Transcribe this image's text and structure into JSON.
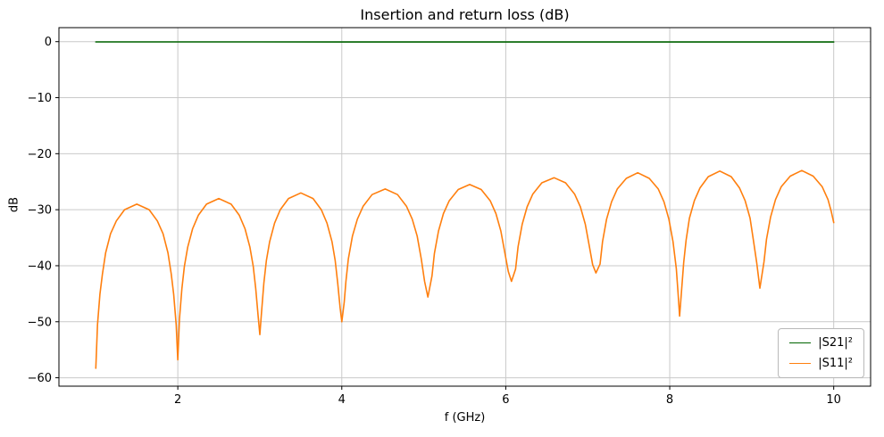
{
  "chart_data": {
    "type": "line",
    "title": "Insertion and return loss (dB)",
    "xlabel": "f (GHz)",
    "ylabel": "dB",
    "xlim": [
      0.55,
      10.45
    ],
    "ylim": [
      -61.5,
      2.5
    ],
    "xticks": [
      2,
      4,
      6,
      8,
      10
    ],
    "xtick_labels": [
      "2",
      "4",
      "6",
      "8",
      "10"
    ],
    "yticks": [
      0,
      -10,
      -20,
      -30,
      -40,
      -50,
      -60
    ],
    "ytick_labels": [
      "0",
      "−10",
      "−20",
      "−30",
      "−40",
      "−50",
      "−60"
    ],
    "grid": true,
    "grid_color": "#c9c9c9",
    "frame_color": "#000000",
    "legend_position": "lower right",
    "series": [
      {
        "name": "|S21|²",
        "color": "#006400",
        "points": [
          [
            1.0,
            -0.05
          ],
          [
            2.0,
            -0.05
          ],
          [
            3.0,
            -0.05
          ],
          [
            4.0,
            -0.06
          ],
          [
            5.0,
            -0.06
          ],
          [
            6.0,
            -0.06
          ],
          [
            7.0,
            -0.06
          ],
          [
            8.0,
            -0.06
          ],
          [
            9.0,
            -0.06
          ],
          [
            10.0,
            -0.06
          ]
        ]
      },
      {
        "name": "|S11|²",
        "color": "#ff7f0e",
        "points": [
          [
            1.0,
            -58.3
          ],
          [
            1.02,
            -50.5
          ],
          [
            1.05,
            -45.1
          ],
          [
            1.08,
            -41.5
          ],
          [
            1.12,
            -37.7
          ],
          [
            1.18,
            -34.3
          ],
          [
            1.25,
            -32.0
          ],
          [
            1.35,
            -30.0
          ],
          [
            1.5,
            -29.0
          ],
          [
            1.65,
            -30.0
          ],
          [
            1.75,
            -32.0
          ],
          [
            1.82,
            -34.3
          ],
          [
            1.88,
            -37.7
          ],
          [
            1.92,
            -41.5
          ],
          [
            1.95,
            -45.1
          ],
          [
            1.98,
            -50.5
          ],
          [
            2.0,
            -56.8
          ],
          [
            2.02,
            -49.5
          ],
          [
            2.05,
            -44.1
          ],
          [
            2.08,
            -40.1
          ],
          [
            2.12,
            -36.7
          ],
          [
            2.18,
            -33.4
          ],
          [
            2.25,
            -31.0
          ],
          [
            2.35,
            -29.0
          ],
          [
            2.5,
            -28.0
          ],
          [
            2.65,
            -29.0
          ],
          [
            2.75,
            -31.0
          ],
          [
            2.82,
            -33.4
          ],
          [
            2.88,
            -36.7
          ],
          [
            2.92,
            -40.1
          ],
          [
            2.95,
            -44.1
          ],
          [
            2.98,
            -49.0
          ],
          [
            3.0,
            -52.3
          ],
          [
            3.02,
            -48.5
          ],
          [
            3.05,
            -43.1
          ],
          [
            3.08,
            -39.1
          ],
          [
            3.12,
            -35.7
          ],
          [
            3.18,
            -32.4
          ],
          [
            3.25,
            -30.0
          ],
          [
            3.35,
            -28.0
          ],
          [
            3.5,
            -27.0
          ],
          [
            3.65,
            -28.0
          ],
          [
            3.75,
            -30.0
          ],
          [
            3.82,
            -32.4
          ],
          [
            3.88,
            -35.7
          ],
          [
            3.92,
            -39.1
          ],
          [
            3.95,
            -43.1
          ],
          [
            3.98,
            -47.5
          ],
          [
            4.0,
            -50.0
          ],
          [
            4.03,
            -46.5
          ],
          [
            4.05,
            -42.8
          ],
          [
            4.08,
            -38.8
          ],
          [
            4.13,
            -34.7
          ],
          [
            4.19,
            -31.7
          ],
          [
            4.26,
            -29.4
          ],
          [
            4.37,
            -27.3
          ],
          [
            4.53,
            -26.3
          ],
          [
            4.68,
            -27.3
          ],
          [
            4.79,
            -29.4
          ],
          [
            4.86,
            -31.7
          ],
          [
            4.92,
            -34.7
          ],
          [
            4.97,
            -38.8
          ],
          [
            5.01,
            -42.8
          ],
          [
            5.05,
            -45.6
          ],
          [
            5.1,
            -41.8
          ],
          [
            5.13,
            -37.8
          ],
          [
            5.18,
            -33.8
          ],
          [
            5.24,
            -30.7
          ],
          [
            5.31,
            -28.4
          ],
          [
            5.42,
            -26.4
          ],
          [
            5.56,
            -25.5
          ],
          [
            5.7,
            -26.4
          ],
          [
            5.81,
            -28.4
          ],
          [
            5.88,
            -30.7
          ],
          [
            5.94,
            -33.8
          ],
          [
            5.99,
            -37.8
          ],
          [
            6.03,
            -41.0
          ],
          [
            6.07,
            -42.8
          ],
          [
            6.12,
            -40.6
          ],
          [
            6.15,
            -36.6
          ],
          [
            6.2,
            -32.6
          ],
          [
            6.26,
            -29.5
          ],
          [
            6.33,
            -27.2
          ],
          [
            6.44,
            -25.2
          ],
          [
            6.59,
            -24.3
          ],
          [
            6.73,
            -25.2
          ],
          [
            6.84,
            -27.2
          ],
          [
            6.91,
            -29.5
          ],
          [
            6.97,
            -32.6
          ],
          [
            7.02,
            -36.6
          ],
          [
            7.06,
            -39.8
          ],
          [
            7.1,
            -41.3
          ],
          [
            7.15,
            -39.7
          ],
          [
            7.18,
            -35.7
          ],
          [
            7.23,
            -31.7
          ],
          [
            7.29,
            -28.6
          ],
          [
            7.36,
            -26.3
          ],
          [
            7.47,
            -24.4
          ],
          [
            7.61,
            -23.4
          ],
          [
            7.75,
            -24.4
          ],
          [
            7.86,
            -26.3
          ],
          [
            7.93,
            -28.6
          ],
          [
            7.99,
            -31.7
          ],
          [
            8.04,
            -35.7
          ],
          [
            8.08,
            -40.5
          ],
          [
            8.1,
            -44.5
          ],
          [
            8.12,
            -49.0
          ],
          [
            8.17,
            -39.4
          ],
          [
            8.2,
            -35.4
          ],
          [
            8.24,
            -31.5
          ],
          [
            8.3,
            -28.4
          ],
          [
            8.37,
            -26.1
          ],
          [
            8.47,
            -24.1
          ],
          [
            8.61,
            -23.1
          ],
          [
            8.75,
            -24.1
          ],
          [
            8.85,
            -26.1
          ],
          [
            8.92,
            -28.4
          ],
          [
            8.98,
            -31.5
          ],
          [
            9.02,
            -35.4
          ],
          [
            9.06,
            -39.4
          ],
          [
            9.1,
            -44.0
          ],
          [
            9.15,
            -39.3
          ],
          [
            9.18,
            -35.3
          ],
          [
            9.23,
            -31.3
          ],
          [
            9.29,
            -28.2
          ],
          [
            9.36,
            -25.9
          ],
          [
            9.47,
            -24.0
          ],
          [
            9.61,
            -23.0
          ],
          [
            9.75,
            -24.0
          ],
          [
            9.86,
            -25.9
          ],
          [
            9.93,
            -28.2
          ],
          [
            9.97,
            -30.3
          ],
          [
            10.0,
            -32.3
          ]
        ]
      }
    ]
  }
}
